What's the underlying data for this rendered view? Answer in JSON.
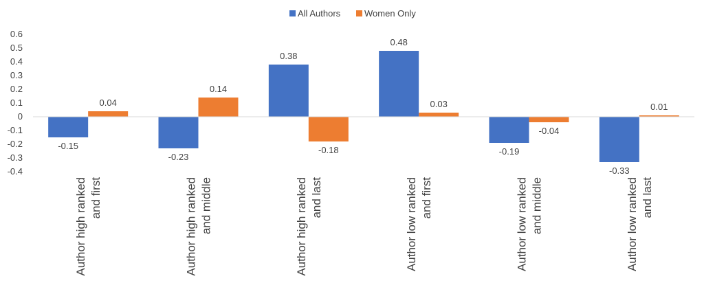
{
  "chart_data": {
    "type": "bar",
    "categories": [
      [
        "Author high ranked",
        "and first"
      ],
      [
        "Author high ranked",
        "and middle"
      ],
      [
        "Author high ranked",
        "and last"
      ],
      [
        "Author low ranked",
        "and first"
      ],
      [
        "Author low ranked",
        "and middle"
      ],
      [
        "Author low ranked",
        "and last"
      ]
    ],
    "series": [
      {
        "name": "All Authors",
        "values": [
          -0.15,
          -0.23,
          0.38,
          0.48,
          -0.19,
          -0.33
        ],
        "labels": [
          "-0.15",
          "-0.23",
          "0.38",
          "0.48",
          "-0.19",
          "-0.33"
        ],
        "color": "#4472C4"
      },
      {
        "name": "Women Only",
        "values": [
          0.04,
          0.14,
          -0.18,
          0.03,
          -0.04,
          0.01
        ],
        "labels": [
          "0.04",
          "0.14",
          "-0.18",
          "0.03",
          "-0.04",
          "0.01"
        ],
        "color": "#ED7D31"
      }
    ],
    "yticks": [
      "0.6",
      "0.5",
      "0.4",
      "0.3",
      "0.2",
      "0.1",
      "0",
      "-0.1",
      "-0.2",
      "-0.3",
      "-0.4"
    ],
    "ylim": [
      -0.4,
      0.6
    ],
    "grid": false,
    "legend_position": "top-center",
    "axis_color": "#D9D9D9"
  }
}
